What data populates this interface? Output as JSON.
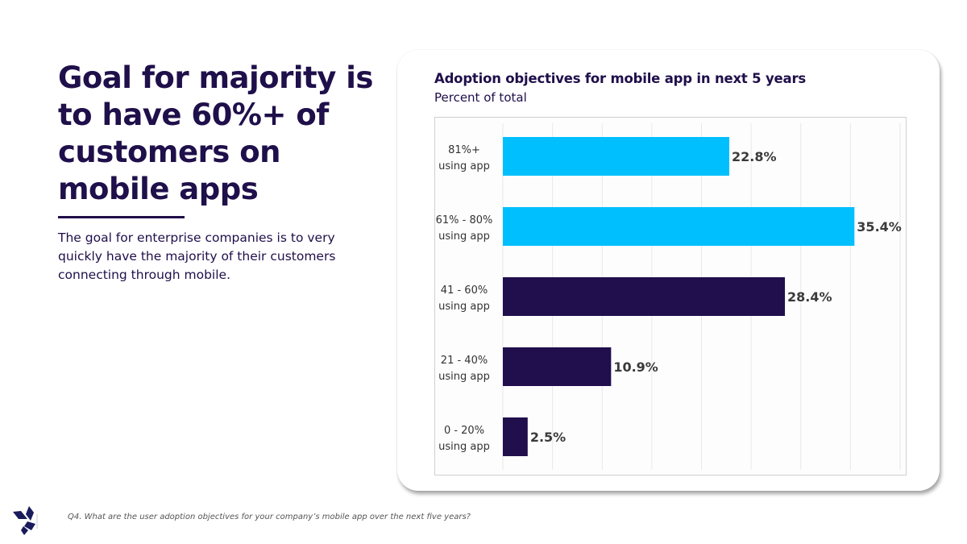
{
  "slide": {
    "headline": "Goal for majority is to have 60%+ of customers on mobile apps",
    "body": "The goal for enterprise companies is to very quickly have the majority of their customers connecting through mobile.",
    "footnote": "Q4. What are the user adoption objectives for your company’s mobile app over the next five years?",
    "logo_icon": "diamond-cluster-logo-icon"
  },
  "chart_data": {
    "type": "bar",
    "orientation": "horizontal",
    "title": "Adoption objectives for mobile app in next 5 years",
    "subtitle": "Percent of total",
    "xlabel": "",
    "ylabel": "",
    "categories": [
      [
        "81%+",
        "using app"
      ],
      [
        "61% - 80%",
        "using app"
      ],
      [
        "41 - 60%",
        "using app"
      ],
      [
        "21 - 40%",
        "using app"
      ],
      [
        "0 - 20%",
        "using app"
      ]
    ],
    "values": [
      22.8,
      35.4,
      28.4,
      10.9,
      2.5
    ],
    "value_labels": [
      "22.8%",
      "35.4%",
      "28.4%",
      "10.9%",
      "2.5%"
    ],
    "bar_colors": [
      "#00BFFF",
      "#00BFFF",
      "#200E4D",
      "#200E4D",
      "#200E4D"
    ],
    "xlim": [
      0,
      40
    ],
    "grid_step": 5,
    "grid": true,
    "x_tick_labels_visible": false,
    "legend": "none"
  }
}
